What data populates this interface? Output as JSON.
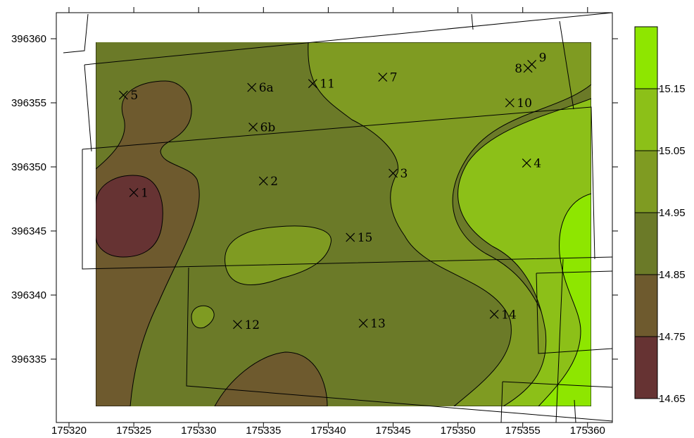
{
  "map": {
    "x_ticks": [
      "175320",
      "175325",
      "175330",
      "175335",
      "175340",
      "175345",
      "175350",
      "175355",
      "175360"
    ],
    "y_ticks": [
      "396360",
      "396355",
      "396350",
      "396345",
      "396340",
      "396335"
    ],
    "sample_points": [
      {
        "id": "1",
        "x": 175325.0,
        "y": 396348.0
      },
      {
        "id": "2",
        "x": 175335.0,
        "y": 396348.9
      },
      {
        "id": "3",
        "x": 175345.0,
        "y": 396349.5
      },
      {
        "id": "4",
        "x": 175355.3,
        "y": 396350.3
      },
      {
        "id": "5",
        "x": 175324.2,
        "y": 396355.6
      },
      {
        "id": "6a",
        "x": 175334.1,
        "y": 396356.2
      },
      {
        "id": "6b",
        "x": 175334.2,
        "y": 396353.1
      },
      {
        "id": "7",
        "x": 175344.2,
        "y": 396357.0
      },
      {
        "id": "8",
        "x": 175355.4,
        "y": 396357.7
      },
      {
        "id": "9",
        "x": 175355.7,
        "y": 396358.0
      },
      {
        "id": "10",
        "x": 175354.0,
        "y": 396355.0
      },
      {
        "id": "11",
        "x": 175338.8,
        "y": 396356.5
      },
      {
        "id": "12",
        "x": 175333.0,
        "y": 396337.7
      },
      {
        "id": "13",
        "x": 175342.7,
        "y": 396337.8
      },
      {
        "id": "14",
        "x": 175352.8,
        "y": 396338.5
      },
      {
        "id": "15",
        "x": 175341.7,
        "y": 396344.5
      }
    ]
  },
  "legend": {
    "levels": [
      "14.65",
      "14.75",
      "14.85",
      "14.95",
      "15.05",
      "15.15"
    ],
    "colors": [
      "#663333",
      "#6e5a2e",
      "#6b7a28",
      "#7f9b22",
      "#8cc018",
      "#8ee600"
    ]
  },
  "colors": {
    "lowest": "#663333",
    "low": "#6e5a2e",
    "mid": "#6b7a28",
    "high": "#7f9b22",
    "higher": "#8cc018",
    "highest": "#8ee600"
  }
}
